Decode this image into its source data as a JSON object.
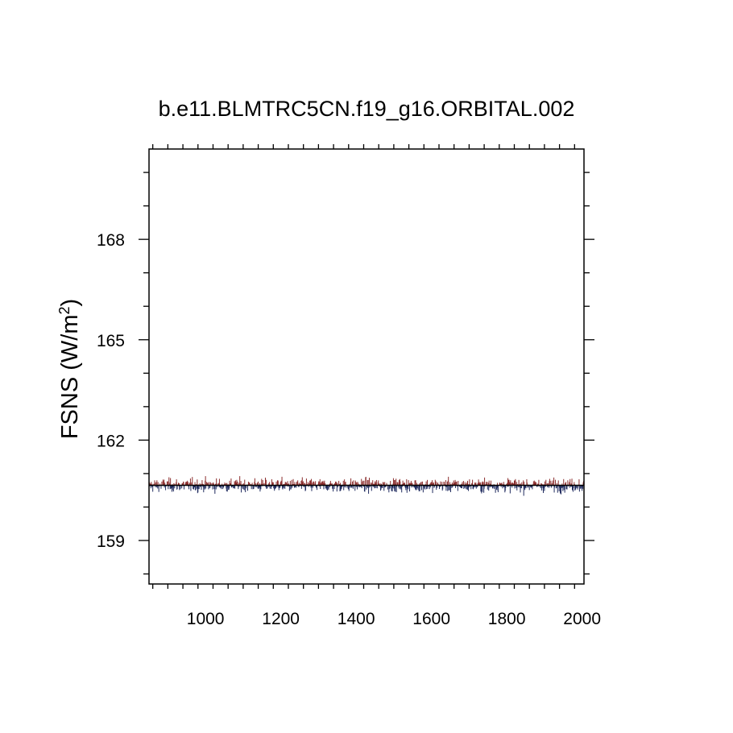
{
  "chart_data": {
    "type": "line",
    "title": "b.e11.BLMTRC5CN.f19_g16.ORBITAL.002",
    "xlabel": "",
    "ylabel_main": "FSNS (W/m",
    "ylabel_sup": "2",
    "ylabel_close": ")",
    "xlim": [
      850,
      2005
    ],
    "ylim": [
      157.7,
      170.7
    ],
    "x_ticks": [
      1000,
      1200,
      1400,
      1600,
      1800,
      2000
    ],
    "x_tick_labels": [
      "1000",
      "1200",
      "1400",
      "1600",
      "1800",
      "2000"
    ],
    "y_ticks": [
      159,
      162,
      165,
      168
    ],
    "y_tick_labels": [
      "159",
      "162",
      "165",
      "168"
    ],
    "baseline": 160.65,
    "x_start": 850,
    "x_end": 2005,
    "positive_color": "#8b2d2d",
    "negative_color": "#1f2a5e",
    "series_style": "anomaly bars about baseline, annual values",
    "grid": false
  }
}
